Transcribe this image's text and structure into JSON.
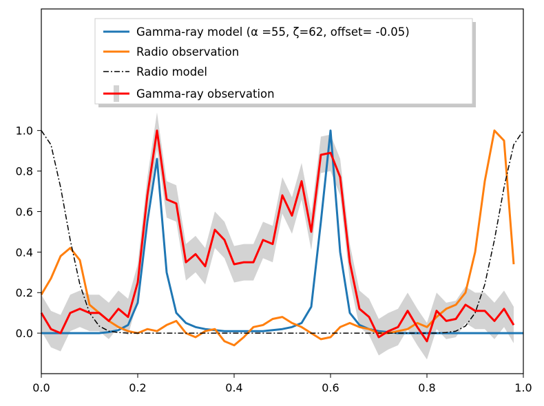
{
  "chart_data": {
    "type": "line",
    "title": "",
    "xlabel": "",
    "ylabel": "",
    "xlim": [
      0.0,
      1.0
    ],
    "ylim": [
      -0.2,
      1.6
    ],
    "xticks": [
      "0.0",
      "0.2",
      "0.4",
      "0.6",
      "0.8",
      "1.0"
    ],
    "yticks": [
      "0.0",
      "0.2",
      "0.4",
      "0.6",
      "0.8",
      "1.0"
    ],
    "grid": false,
    "legend_position": "top-center",
    "series": [
      {
        "name": "Gamma-ray model (α =55, ζ=62, offset= -0.05)",
        "color": "#1f77b4",
        "style": "solid",
        "x": [
          0.0,
          0.02,
          0.04,
          0.06,
          0.08,
          0.1,
          0.12,
          0.14,
          0.16,
          0.18,
          0.2,
          0.22,
          0.24,
          0.26,
          0.28,
          0.3,
          0.32,
          0.34,
          0.36,
          0.38,
          0.4,
          0.42,
          0.44,
          0.46,
          0.48,
          0.5,
          0.52,
          0.54,
          0.56,
          0.58,
          0.6,
          0.62,
          0.64,
          0.66,
          0.68,
          0.7,
          0.72,
          0.74,
          0.76,
          0.78,
          0.8,
          0.82,
          0.84,
          0.86,
          0.88,
          0.9,
          0.92,
          0.94,
          0.96,
          0.98,
          1.0
        ],
        "y": [
          0.0,
          0.0,
          0.0,
          0.0,
          0.0,
          0.0,
          0.0,
          0.005,
          0.015,
          0.04,
          0.15,
          0.55,
          0.86,
          0.3,
          0.1,
          0.05,
          0.03,
          0.02,
          0.015,
          0.01,
          0.01,
          0.01,
          0.01,
          0.01,
          0.015,
          0.02,
          0.03,
          0.05,
          0.13,
          0.55,
          1.0,
          0.4,
          0.1,
          0.04,
          0.02,
          0.01,
          0.005,
          0.0,
          0.0,
          0.0,
          0.0,
          0.0,
          0.0,
          0.0,
          0.0,
          0.0,
          0.0,
          0.0,
          0.0,
          0.0,
          0.0
        ]
      },
      {
        "name": "Radio observation",
        "color": "#ff7f0e",
        "style": "solid",
        "x": [
          0.0,
          0.02,
          0.04,
          0.06,
          0.08,
          0.1,
          0.12,
          0.14,
          0.16,
          0.18,
          0.2,
          0.22,
          0.24,
          0.26,
          0.28,
          0.3,
          0.32,
          0.34,
          0.36,
          0.38,
          0.4,
          0.42,
          0.44,
          0.46,
          0.48,
          0.5,
          0.52,
          0.54,
          0.56,
          0.58,
          0.6,
          0.62,
          0.64,
          0.66,
          0.68,
          0.7,
          0.72,
          0.74,
          0.76,
          0.78,
          0.8,
          0.82,
          0.84,
          0.86,
          0.88,
          0.9,
          0.92,
          0.94,
          0.96,
          0.98
        ],
        "y": [
          0.19,
          0.27,
          0.38,
          0.42,
          0.36,
          0.14,
          0.1,
          0.06,
          0.03,
          0.01,
          0.0,
          0.02,
          0.01,
          0.04,
          0.06,
          0.0,
          -0.02,
          0.01,
          0.02,
          -0.04,
          -0.06,
          -0.02,
          0.03,
          0.04,
          0.07,
          0.08,
          0.05,
          0.03,
          0.0,
          -0.03,
          -0.02,
          0.03,
          0.05,
          0.03,
          0.02,
          0.0,
          0.0,
          0.01,
          0.02,
          0.05,
          0.03,
          0.08,
          0.12,
          0.14,
          0.2,
          0.4,
          0.75,
          1.0,
          0.95,
          0.34
        ]
      },
      {
        "name": "Radio model",
        "color": "#000000",
        "style": "dashdot",
        "x": [
          0.0,
          0.02,
          0.04,
          0.06,
          0.08,
          0.1,
          0.12,
          0.14,
          0.16,
          0.18,
          0.2,
          0.22,
          0.24,
          0.26,
          0.28,
          0.3,
          0.32,
          0.34,
          0.36,
          0.38,
          0.4,
          0.42,
          0.44,
          0.46,
          0.48,
          0.5,
          0.52,
          0.54,
          0.56,
          0.58,
          0.6,
          0.62,
          0.64,
          0.66,
          0.68,
          0.7,
          0.72,
          0.74,
          0.76,
          0.78,
          0.8,
          0.82,
          0.84,
          0.86,
          0.88,
          0.9,
          0.92,
          0.94,
          0.96,
          0.98,
          1.0
        ],
        "y": [
          1.0,
          0.93,
          0.72,
          0.46,
          0.24,
          0.1,
          0.035,
          0.01,
          0.003,
          0.0,
          0.0,
          0.0,
          0.0,
          0.0,
          0.0,
          0.0,
          0.0,
          0.0,
          0.0,
          0.0,
          0.0,
          0.0,
          0.0,
          0.0,
          0.0,
          0.0,
          0.0,
          0.0,
          0.0,
          0.0,
          0.0,
          0.0,
          0.0,
          0.0,
          0.0,
          0.0,
          0.0,
          0.0,
          0.0,
          0.0,
          0.0,
          0.0,
          0.003,
          0.01,
          0.035,
          0.1,
          0.24,
          0.46,
          0.72,
          0.93,
          1.0
        ]
      },
      {
        "name": "Gamma-ray observation",
        "color": "#ff0000",
        "style": "solid",
        "error_band_color": "#d3d3d3",
        "error": 0.09,
        "x": [
          0.0,
          0.02,
          0.04,
          0.06,
          0.08,
          0.1,
          0.12,
          0.14,
          0.16,
          0.18,
          0.2,
          0.22,
          0.24,
          0.26,
          0.28,
          0.3,
          0.32,
          0.34,
          0.36,
          0.38,
          0.4,
          0.42,
          0.44,
          0.46,
          0.48,
          0.5,
          0.52,
          0.54,
          0.56,
          0.58,
          0.6,
          0.62,
          0.64,
          0.66,
          0.68,
          0.7,
          0.72,
          0.74,
          0.76,
          0.78,
          0.8,
          0.82,
          0.84,
          0.86,
          0.88,
          0.9,
          0.92,
          0.94,
          0.96,
          0.98
        ],
        "y": [
          0.1,
          0.02,
          0.0,
          0.1,
          0.12,
          0.1,
          0.1,
          0.06,
          0.12,
          0.08,
          0.25,
          0.68,
          1.0,
          0.66,
          0.64,
          0.35,
          0.39,
          0.33,
          0.51,
          0.46,
          0.34,
          0.35,
          0.35,
          0.46,
          0.44,
          0.68,
          0.58,
          0.75,
          0.5,
          0.88,
          0.89,
          0.77,
          0.35,
          0.12,
          0.08,
          -0.02,
          0.01,
          0.03,
          0.11,
          0.03,
          -0.04,
          0.11,
          0.06,
          0.07,
          0.14,
          0.11,
          0.11,
          0.06,
          0.12,
          0.04
        ]
      }
    ]
  }
}
